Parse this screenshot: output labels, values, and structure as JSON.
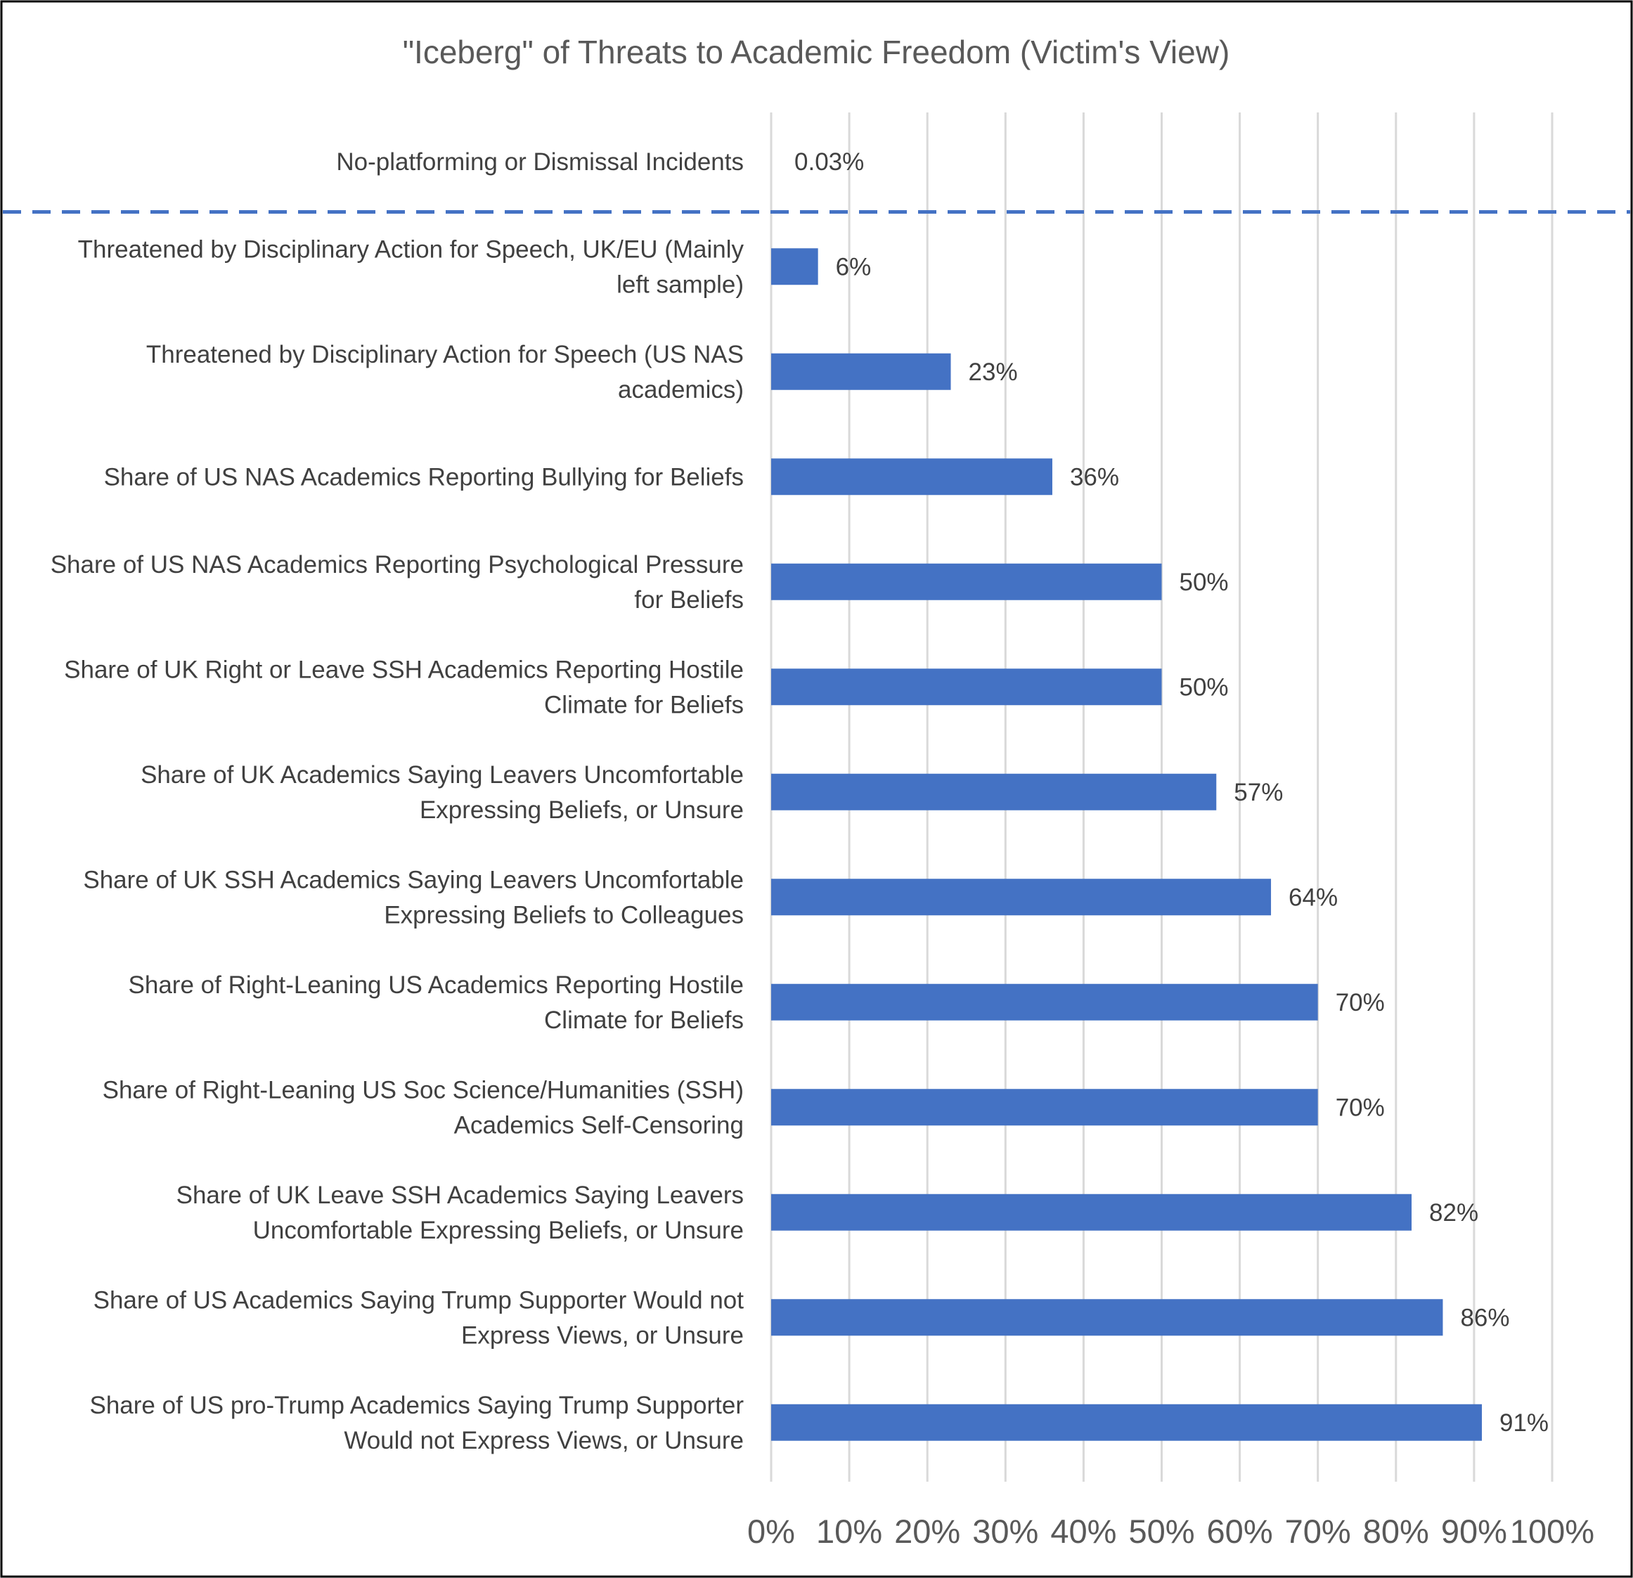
{
  "chart_data": {
    "type": "bar",
    "orientation": "horizontal",
    "title": "\"Iceberg\" of Threats to Academic Freedom (Victim's View)",
    "categories": [
      [
        "No-platforming or Dismissal Incidents"
      ],
      [
        "Threatened by Disciplinary Action for Speech, UK/EU (Mainly",
        "left sample)"
      ],
      [
        "Threatened by Disciplinary Action for Speech (US NAS",
        "academics)"
      ],
      [
        "Share of US NAS Academics Reporting Bullying for Beliefs"
      ],
      [
        "Share of US NAS Academics Reporting Psychological Pressure",
        "for Beliefs"
      ],
      [
        "Share of UK Right or Leave SSH Academics Reporting Hostile",
        "Climate for Beliefs"
      ],
      [
        "Share of UK Academics Saying Leavers Uncomfortable",
        "Expressing Beliefs, or Unsure"
      ],
      [
        "Share of UK  SSH Academics Saying Leavers Uncomfortable",
        "Expressing Beliefs to Colleagues"
      ],
      [
        "Share of Right-Leaning US Academics Reporting Hostile",
        "Climate for Beliefs"
      ],
      [
        "Share of Right-Leaning US Soc Science/Humanities (SSH)",
        "Academics Self-Censoring"
      ],
      [
        "Share of UK Leave SSH Academics Saying Leavers",
        "Uncomfortable Expressing Beliefs, or Unsure"
      ],
      [
        "Share of US Academics Saying Trump Supporter Would not",
        "Express Views, or Unsure"
      ],
      [
        "Share of US pro-Trump Academics Saying Trump Supporter",
        "Would not Express Views, or Unsure"
      ]
    ],
    "values": [
      0.03,
      6,
      23,
      36,
      50,
      50,
      57,
      64,
      70,
      70,
      82,
      86,
      91
    ],
    "data_labels": [
      "0.03%",
      "6%",
      "23%",
      "36%",
      "50%",
      "50%",
      "57%",
      "64%",
      "70%",
      "70%",
      "82%",
      "86%",
      "91%"
    ],
    "xlim": [
      0,
      100
    ],
    "xticks": [
      "0%",
      "10%",
      "20%",
      "30%",
      "40%",
      "50%",
      "60%",
      "70%",
      "80%",
      "90%",
      "100%"
    ],
    "grid": "vertical",
    "legend": "none",
    "annotations": [
      {
        "type": "dashed-line",
        "orientation": "horizontal",
        "between_categories": [
          0,
          1
        ],
        "color": "#4472C4"
      }
    ],
    "colors": {
      "bar": "#4472C4",
      "grid": "#d9d9d9",
      "frame": "#000000",
      "text": "#404040",
      "tick_text": "#595959"
    }
  }
}
